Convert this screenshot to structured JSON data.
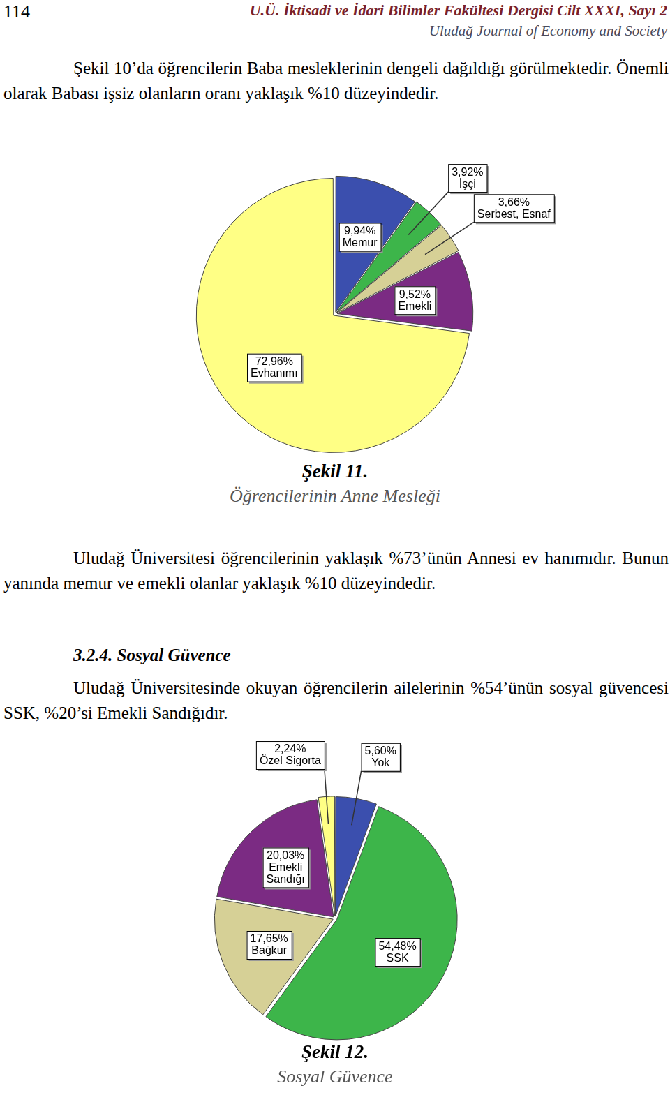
{
  "header": {
    "page_number": "114",
    "journal_tr": "U.Ü. İktisadi ve İdari Bilimler Fakültesi Dergisi Cilt XXXI, Sayı 2",
    "journal_en": "Uludağ Journal of Economy and Society"
  },
  "paragraphs": [
    "Şekil 10’da öğrencilerin Baba mesleklerinin dengeli dağıldığı görülmektedir. Önemli olarak Babası işsiz olanların oranı yaklaşık %10 düzeyindedir.",
    "Uludağ Üniversitesi öğrencilerinin yaklaşık %73’ünün Annesi ev hanımıdır. Bunun yanında memur ve emekli olanlar yaklaşık %10 düzeyindedir.",
    "Uludağ Üniversitesinde okuyan öğrencilerin ailelerinin %54’ünün sosyal güvencesi SSK, %20’si Emekli Sandığıdır."
  ],
  "section_heading": "3.2.4. Sosyal Güvence",
  "chart_data": [
    {
      "type": "pie",
      "title": "Şekil 11.",
      "subtitle": "Öğrencilerinin Anne Mesleği",
      "categories": [
        "Memur",
        "İşçi",
        "Serbest, Esnaf",
        "Emekli",
        "Evhanımı"
      ],
      "values": [
        9.94,
        3.92,
        3.66,
        9.52,
        72.96
      ],
      "value_labels": [
        "9,94%",
        "3,92%",
        "3,66%",
        "9,52%",
        "72,96%"
      ],
      "colors": [
        "#3b4fae",
        "#3db54a",
        "#d6d096",
        "#7b2b83",
        "#ffff85"
      ],
      "data_labels": true
    },
    {
      "type": "pie",
      "title": "Şekil 12.",
      "subtitle": "Sosyal Güvence",
      "categories": [
        "Yok",
        "SSK",
        "Bağkur",
        "Emekli Sandığı",
        "Özel Sigorta"
      ],
      "values": [
        5.6,
        54.48,
        17.65,
        20.03,
        2.24
      ],
      "value_labels": [
        "5,60%",
        "54,48%",
        "17,65%",
        "20,03%",
        "2,24%"
      ],
      "colors": [
        "#3b4fae",
        "#3db54a",
        "#d6d096",
        "#7b2b83",
        "#ffff85"
      ],
      "data_labels": true
    }
  ]
}
